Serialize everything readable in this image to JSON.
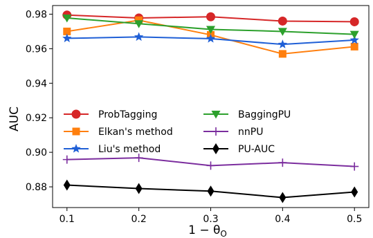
{
  "chart_data": {
    "type": "line",
    "title": "",
    "xlabel": "1 − θ",
    "xlabel_subscript": "O",
    "ylabel": "AUC",
    "x": [
      0.1,
      0.2,
      0.3,
      0.4,
      0.5
    ],
    "xlim": [
      0.08,
      0.52
    ],
    "ylim": [
      0.868,
      0.985
    ],
    "xticks": [
      "0.1",
      "0.2",
      "0.3",
      "0.4",
      "0.5"
    ],
    "yticks": [
      "0.88",
      "0.90",
      "0.92",
      "0.94",
      "0.96",
      "0.98"
    ],
    "ytick_values": [
      0.88,
      0.9,
      0.92,
      0.94,
      0.96,
      0.98
    ],
    "grid": false,
    "legend_placement": "center-left",
    "series": [
      {
        "name": "ProbTagging",
        "color": "#d62728",
        "marker": "circle",
        "values": [
          0.9795,
          0.9778,
          0.9785,
          0.976,
          0.9756
        ]
      },
      {
        "name": "Elkan's method",
        "color": "#ff7f0e",
        "marker": "square",
        "values": [
          0.97,
          0.9765,
          0.968,
          0.957,
          0.9612
        ]
      },
      {
        "name": "Liu's method",
        "color": "#1f5fd6",
        "marker": "star",
        "values": [
          0.966,
          0.9668,
          0.9658,
          0.9625,
          0.965
        ]
      },
      {
        "name": "BaggingPU",
        "color": "#2ca02c",
        "marker": "triangle-down",
        "values": [
          0.9778,
          0.9745,
          0.9712,
          0.97,
          0.9683
        ]
      },
      {
        "name": "nnPU",
        "color": "#7b2d9e",
        "marker": "plus",
        "values": [
          0.8958,
          0.8968,
          0.8923,
          0.894,
          0.8918
        ]
      },
      {
        "name": "PU-AUC",
        "color": "#000000",
        "marker": "diamond",
        "values": [
          0.881,
          0.879,
          0.8775,
          0.8738,
          0.877
        ]
      }
    ]
  }
}
